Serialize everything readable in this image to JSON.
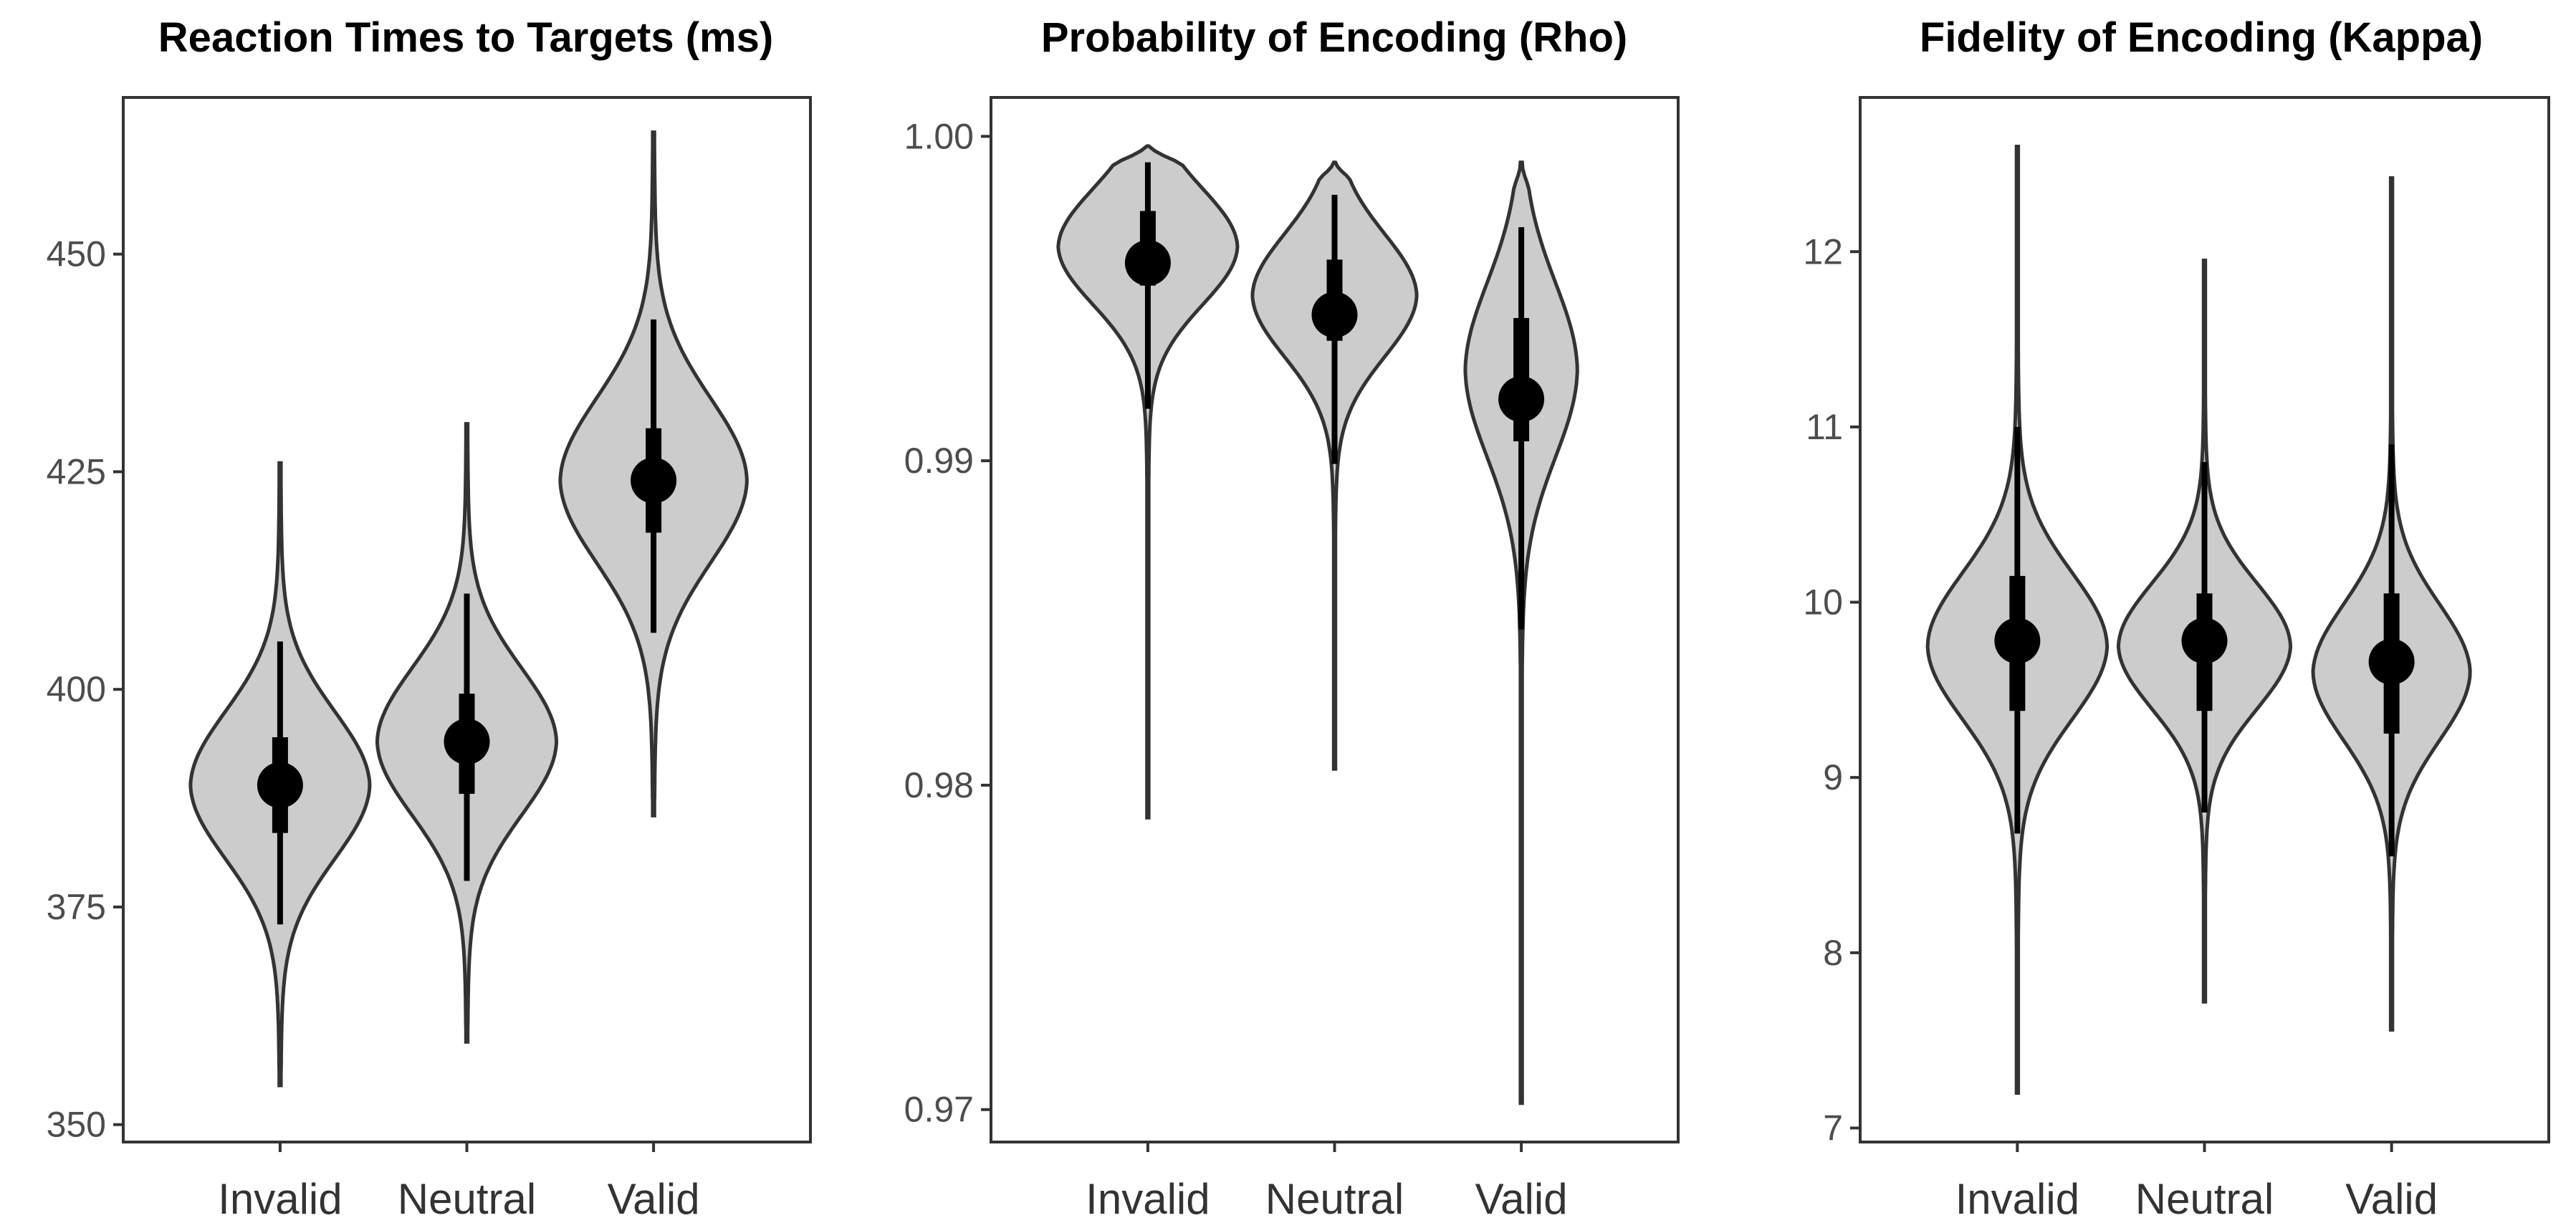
{
  "chart_data": [
    {
      "type": "violin",
      "title": "Reaction Times to Targets (ms)",
      "xlabel": "",
      "ylabel": "",
      "categories": [
        "Invalid",
        "Neutral",
        "Valid"
      ],
      "ylim": [
        348,
        468
      ],
      "yticks": [
        350,
        375,
        400,
        425,
        450
      ],
      "tick_labels": [
        "350",
        "375",
        "400",
        "425",
        "450"
      ],
      "series": [
        {
          "name": "Invalid",
          "median": 389,
          "q1": 383.5,
          "q3": 394.5,
          "whisker_low": 373,
          "whisker_high": 405.5,
          "min": 354.5,
          "max": 426,
          "peak": 389,
          "spread": 8.5,
          "max_halfwidth": 0.48
        },
        {
          "name": "Neutral",
          "median": 394,
          "q1": 388,
          "q3": 399.5,
          "whisker_low": 378,
          "whisker_high": 411,
          "min": 359.5,
          "max": 430.5,
          "peak": 394,
          "spread": 8.5,
          "max_halfwidth": 0.48
        },
        {
          "name": "Valid",
          "median": 424,
          "q1": 418,
          "q3": 430,
          "whisker_low": 406.5,
          "whisker_high": 442.5,
          "min": 385.5,
          "max": 464,
          "peak": 424,
          "spread": 9.5,
          "max_halfwidth": 0.5
        }
      ]
    },
    {
      "type": "violin",
      "title": "Probability of Encoding (Rho)",
      "xlabel": "",
      "ylabel": "",
      "categories": [
        "Invalid",
        "Neutral",
        "Valid"
      ],
      "ylim": [
        0.969,
        1.0012
      ],
      "yticks": [
        0.97,
        0.98,
        0.99,
        1.0
      ],
      "tick_labels": [
        "0.97",
        "0.98",
        "0.99",
        "1.00"
      ],
      "series": [
        {
          "name": "Invalid",
          "median": 0.9961,
          "q1": 0.9954,
          "q3": 0.9977,
          "whisker_low": 0.9916,
          "whisker_high": 0.9992,
          "min": 0.979,
          "max": 0.9997,
          "peak": 0.9966,
          "spread": 0.0018,
          "max_halfwidth": 0.48
        },
        {
          "name": "Neutral",
          "median": 0.9945,
          "q1": 0.9937,
          "q3": 0.9962,
          "whisker_low": 0.9899,
          "whisker_high": 0.9982,
          "min": 0.9805,
          "max": 0.9992,
          "peak": 0.9951,
          "spread": 0.0019,
          "max_halfwidth": 0.44
        },
        {
          "name": "Valid",
          "median": 0.9919,
          "q1": 0.9906,
          "q3": 0.9944,
          "whisker_low": 0.9848,
          "whisker_high": 0.9972,
          "min": 0.9702,
          "max": 0.9992,
          "peak": 0.9928,
          "spread": 0.0027,
          "max_halfwidth": 0.3
        }
      ]
    },
    {
      "type": "violin",
      "title": "Fidelity of Encoding (Kappa)",
      "xlabel": "",
      "ylabel": "",
      "categories": [
        "Invalid",
        "Neutral",
        "Valid"
      ],
      "ylim": [
        6.92,
        12.88
      ],
      "yticks": [
        7,
        8,
        9,
        10,
        11,
        12
      ],
      "tick_labels": [
        "7",
        "8",
        "9",
        "10",
        "11",
        "12"
      ],
      "series": [
        {
          "name": "Invalid",
          "median": 9.78,
          "q1": 9.38,
          "q3": 10.15,
          "whisker_low": 8.68,
          "whisker_high": 11.0,
          "min": 7.2,
          "max": 12.6,
          "peak": 9.75,
          "spread": 0.42,
          "max_halfwidth": 0.48
        },
        {
          "name": "Neutral",
          "median": 9.78,
          "q1": 9.38,
          "q3": 10.05,
          "whisker_low": 8.8,
          "whisker_high": 10.8,
          "min": 7.72,
          "max": 11.95,
          "peak": 9.75,
          "spread": 0.36,
          "max_halfwidth": 0.46
        },
        {
          "name": "Valid",
          "median": 9.66,
          "q1": 9.25,
          "q3": 10.05,
          "whisker_low": 8.55,
          "whisker_high": 10.9,
          "min": 7.56,
          "max": 12.42,
          "peak": 9.6,
          "spread": 0.39,
          "max_halfwidth": 0.42
        }
      ]
    }
  ]
}
